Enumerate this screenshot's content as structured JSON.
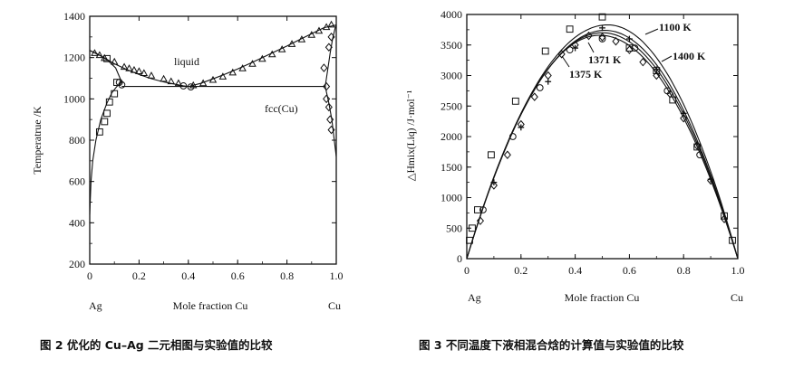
{
  "chart_data": [
    {
      "type": "scatter",
      "caption": "图 2  优化的 Cu–Ag 二元相图与实验值的比较",
      "xlabel": "Mole fraction Cu",
      "ylabel": "Temperatrue /K",
      "left_end_label": "Ag",
      "right_end_label": "Cu",
      "xlim": [
        0,
        1.0
      ],
      "ylim": [
        200,
        1400
      ],
      "x_ticks": [
        "0",
        "0.2",
        "0.4",
        "0.6",
        "0.8",
        "1.0"
      ],
      "y_ticks": [
        "200",
        "400",
        "600",
        "800",
        "1000",
        "1200",
        "1400"
      ],
      "annotations": [
        "liquid",
        "fcc(Cu)"
      ],
      "lines": {
        "liquidus": [
          [
            0,
            1235
          ],
          [
            0.05,
            1205
          ],
          [
            0.1,
            1170
          ],
          [
            0.15,
            1142
          ],
          [
            0.2,
            1118
          ],
          [
            0.25,
            1098
          ],
          [
            0.3,
            1082
          ],
          [
            0.35,
            1070
          ],
          [
            0.38,
            1063
          ],
          [
            0.4,
            1060
          ],
          [
            0.45,
            1075
          ],
          [
            0.5,
            1097
          ],
          [
            0.55,
            1120
          ],
          [
            0.6,
            1145
          ],
          [
            0.65,
            1172
          ],
          [
            0.7,
            1200
          ],
          [
            0.75,
            1228
          ],
          [
            0.8,
            1256
          ],
          [
            0.85,
            1286
          ],
          [
            0.9,
            1316
          ],
          [
            0.95,
            1345
          ],
          [
            1.0,
            1358
          ]
        ],
        "ag_solvus": [
          [
            0,
            440
          ],
          [
            0.005,
            600
          ],
          [
            0.012,
            700
          ],
          [
            0.025,
            800
          ],
          [
            0.045,
            900
          ],
          [
            0.07,
            980
          ],
          [
            0.09,
            1030
          ],
          [
            0.11,
            1060
          ],
          [
            0.13,
            1080
          ],
          [
            0.105,
            1150
          ],
          [
            0.07,
            1190
          ],
          [
            0.035,
            1215
          ],
          [
            0,
            1235
          ]
        ],
        "cu_solvus": [
          [
            1.0,
            720
          ],
          [
            0.992,
            800
          ],
          [
            0.982,
            900
          ],
          [
            0.97,
            980
          ],
          [
            0.955,
            1060
          ],
          [
            0.965,
            1140
          ],
          [
            0.975,
            1220
          ],
          [
            0.985,
            1290
          ],
          [
            0.995,
            1340
          ],
          [
            1.0,
            1358
          ]
        ],
        "eutectic": [
          [
            0.13,
            1060
          ],
          [
            0.955,
            1060
          ]
        ]
      },
      "series": [
        {
          "marker": "triangle",
          "points": [
            [
              0.02,
              1222
            ],
            [
              0.04,
              1212
            ],
            [
              0.06,
              1198
            ],
            [
              0.1,
              1180
            ],
            [
              0.14,
              1155
            ],
            [
              0.16,
              1148
            ],
            [
              0.18,
              1140
            ],
            [
              0.2,
              1134
            ],
            [
              0.22,
              1125
            ],
            [
              0.25,
              1113
            ],
            [
              0.3,
              1097
            ],
            [
              0.33,
              1085
            ],
            [
              0.36,
              1076
            ],
            [
              0.42,
              1066
            ],
            [
              0.46,
              1076
            ],
            [
              0.5,
              1092
            ],
            [
              0.54,
              1108
            ],
            [
              0.58,
              1128
            ],
            [
              0.62,
              1148
            ],
            [
              0.66,
              1170
            ],
            [
              0.7,
              1194
            ],
            [
              0.74,
              1216
            ],
            [
              0.78,
              1240
            ],
            [
              0.82,
              1266
            ],
            [
              0.86,
              1288
            ],
            [
              0.9,
              1310
            ],
            [
              0.93,
              1330
            ],
            [
              0.96,
              1348
            ],
            [
              0.98,
              1360
            ]
          ]
        },
        {
          "marker": "circle",
          "points": [
            [
              0.12,
              1080
            ],
            [
              0.13,
              1068
            ],
            [
              0.38,
              1063
            ],
            [
              0.41,
              1058
            ]
          ]
        },
        {
          "marker": "diamond",
          "points": [
            [
              0.95,
              1150
            ],
            [
              0.96,
              1060
            ],
            [
              0.96,
              1000
            ],
            [
              0.97,
              960
            ],
            [
              0.975,
              900
            ],
            [
              0.98,
              850
            ],
            [
              0.97,
              1250
            ],
            [
              0.98,
              1300
            ]
          ]
        },
        {
          "marker": "square",
          "points": [
            [
              0.04,
              840
            ],
            [
              0.06,
              890
            ],
            [
              0.07,
              930
            ],
            [
              0.08,
              985
            ],
            [
              0.1,
              1025
            ],
            [
              0.11,
              1080
            ],
            [
              0.07,
              1195
            ]
          ]
        }
      ]
    },
    {
      "type": "scatter",
      "caption": "图 3  不同温度下液相混合焓的计算值与实验值的比较",
      "xlabel": "Mole fraction Cu",
      "ylabel": "△Hmix(Liq) /J·mol⁻¹",
      "left_end_label": "Ag",
      "right_end_label": "Cu",
      "xlim": [
        0,
        1.0
      ],
      "ylim": [
        0,
        4000
      ],
      "x_ticks": [
        "0",
        "0.2",
        "0.4",
        "0.6",
        "0.8",
        "1.0"
      ],
      "y_ticks": [
        "0",
        "500",
        "1000",
        "1500",
        "2000",
        "2500",
        "3000",
        "3500",
        "4000"
      ],
      "annotations": [
        "1100 K",
        "1400 K",
        "1371 K",
        "1375 K"
      ],
      "lines": [
        {
          "name": "1100 K",
          "peak": 3830,
          "xpeak": 0.52
        },
        {
          "name": "1400 K",
          "peak": 3740,
          "xpeak": 0.51
        },
        {
          "name": "1371 K",
          "peak": 3700,
          "xpeak": 0.5
        },
        {
          "name": "1375 K",
          "peak": 3660,
          "xpeak": 0.49
        }
      ],
      "series": [
        {
          "marker": "square",
          "points": [
            [
              0.01,
              300
            ],
            [
              0.02,
              500
            ],
            [
              0.04,
              800
            ],
            [
              0.09,
              1700
            ],
            [
              0.18,
              2580
            ],
            [
              0.29,
              3400
            ],
            [
              0.38,
              3760
            ],
            [
              0.5,
              3960
            ],
            [
              0.6,
              3450
            ],
            [
              0.7,
              3080
            ],
            [
              0.76,
              2600
            ],
            [
              0.85,
              1830
            ],
            [
              0.95,
              700
            ],
            [
              0.98,
              300
            ]
          ]
        },
        {
          "marker": "diamond",
          "points": [
            [
              0.05,
              620
            ],
            [
              0.1,
              1200
            ],
            [
              0.15,
              1700
            ],
            [
              0.2,
              2200
            ],
            [
              0.25,
              2650
            ],
            [
              0.3,
              3000
            ],
            [
              0.35,
              3350
            ],
            [
              0.4,
              3500
            ],
            [
              0.45,
              3650
            ],
            [
              0.5,
              3630
            ],
            [
              0.55,
              3560
            ],
            [
              0.6,
              3420
            ],
            [
              0.65,
              3220
            ],
            [
              0.7,
              3000
            ],
            [
              0.75,
              2700
            ],
            [
              0.8,
              2300
            ],
            [
              0.85,
              1850
            ],
            [
              0.9,
              1280
            ],
            [
              0.95,
              650
            ]
          ]
        },
        {
          "marker": "cross",
          "points": [
            [
              0.1,
              1250
            ],
            [
              0.2,
              2150
            ],
            [
              0.3,
              2900
            ],
            [
              0.4,
              3450
            ],
            [
              0.5,
              3780
            ],
            [
              0.6,
              3600
            ],
            [
              0.7,
              3100
            ],
            [
              0.8,
              2380
            ],
            [
              0.9,
              1300
            ]
          ]
        },
        {
          "marker": "circle",
          "points": [
            [
              0.06,
              800
            ],
            [
              0.17,
              2000
            ],
            [
              0.27,
              2800
            ],
            [
              0.38,
              3420
            ],
            [
              0.5,
              3600
            ],
            [
              0.62,
              3450
            ],
            [
              0.74,
              2750
            ],
            [
              0.86,
              1700
            ]
          ]
        }
      ]
    }
  ]
}
